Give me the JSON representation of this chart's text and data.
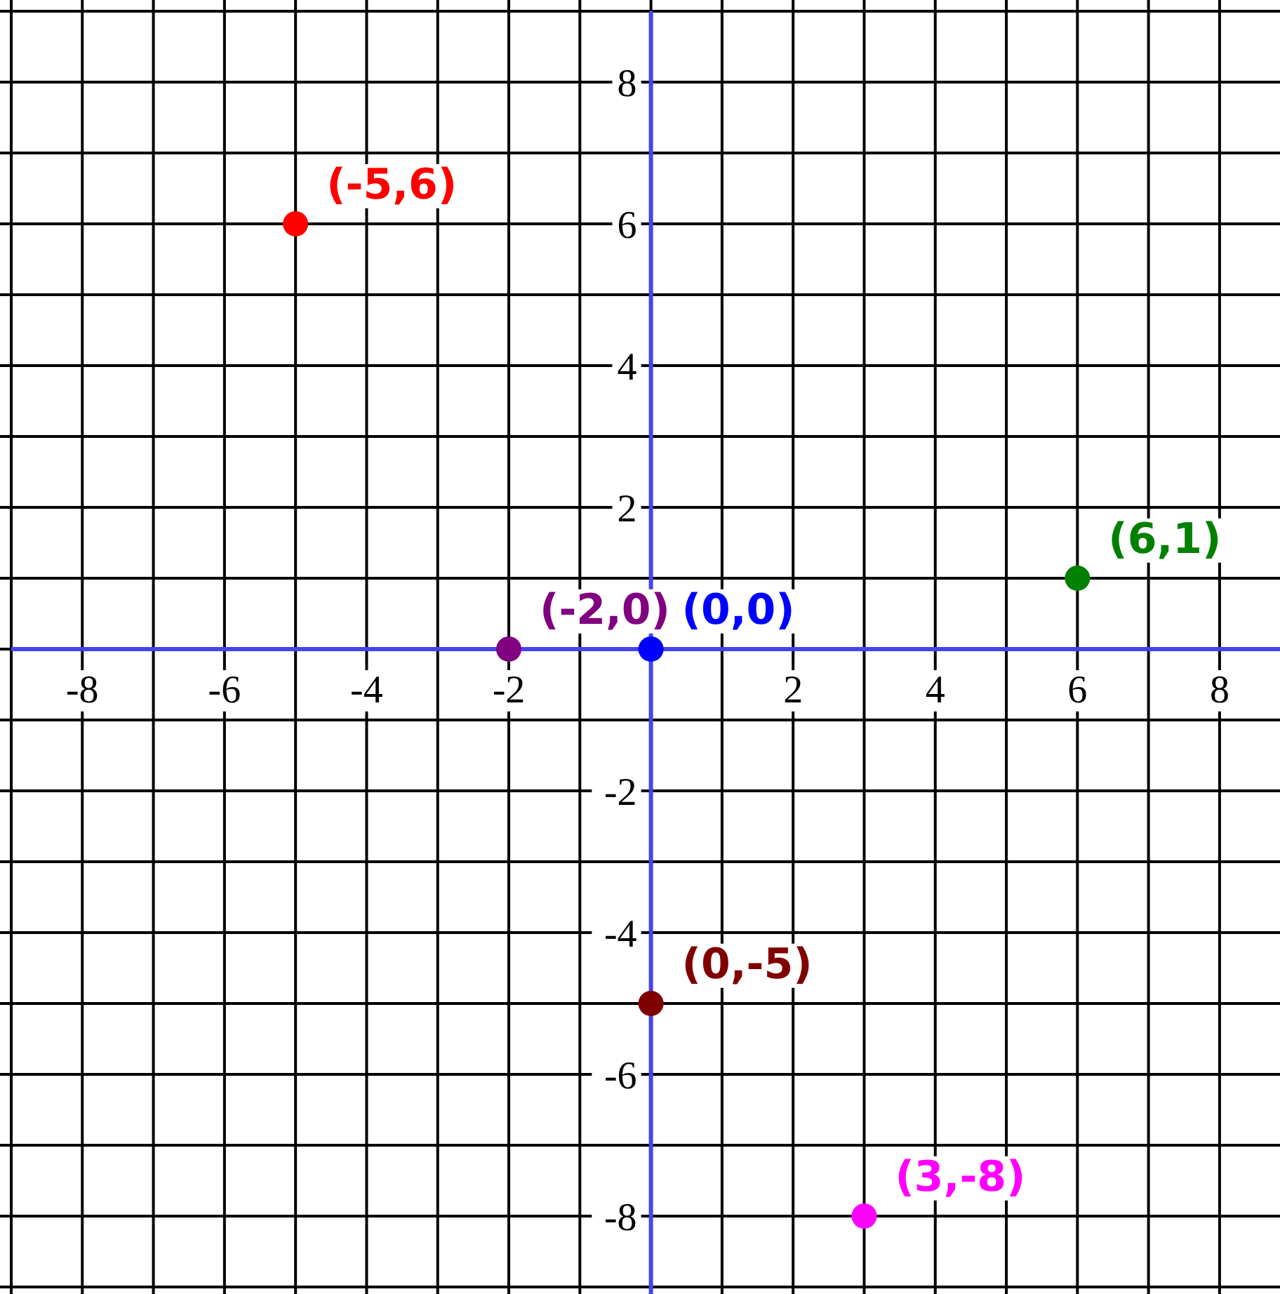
{
  "chart_data": {
    "type": "scatter",
    "xlim": [
      -9,
      8.85
    ],
    "ylim": [
      -9.1,
      9
    ],
    "xticks": [
      {
        "value": -9,
        "label": null
      },
      -8,
      {
        "value": -7,
        "label": null
      },
      -6,
      {
        "value": -5,
        "label": null
      },
      -4,
      {
        "value": -3,
        "label": null
      },
      -2,
      {
        "value": -1,
        "label": null
      },
      {
        "value": 0,
        "label": null
      },
      {
        "value": 1,
        "label": null
      },
      2,
      {
        "value": 3,
        "label": null
      },
      4,
      {
        "value": 5,
        "label": null
      },
      6,
      {
        "value": 7,
        "label": null
      },
      8
    ],
    "yticks": [
      {
        "value": -9,
        "label": null
      },
      -8,
      {
        "value": -7,
        "label": null
      },
      -6,
      {
        "value": -5,
        "label": null
      },
      -4,
      {
        "value": -3,
        "label": null
      },
      -2,
      {
        "value": -1,
        "label": null
      },
      {
        "value": 0,
        "label": null
      },
      {
        "value": 1,
        "label": null
      },
      2,
      {
        "value": 3,
        "label": null
      },
      4,
      {
        "value": 5,
        "label": null
      },
      6,
      {
        "value": 7,
        "label": null
      },
      8,
      {
        "value": 9,
        "label": null
      }
    ],
    "grid": true,
    "marker": "circle",
    "series": [
      {
        "color": "#ff0000",
        "x": [
          -5
        ],
        "values": [
          6
        ]
      },
      {
        "color": "#800080",
        "x": [
          -2
        ],
        "values": [
          0
        ]
      },
      {
        "color": "#0000ff",
        "x": [
          0
        ],
        "values": [
          0
        ]
      },
      {
        "color": "#008000",
        "x": [
          6
        ],
        "values": [
          1
        ]
      },
      {
        "color": "#800000",
        "x": [
          0
        ],
        "values": [
          -5
        ]
      },
      {
        "color": "#ff00ff",
        "x": [
          3
        ],
        "values": [
          -8
        ]
      }
    ],
    "annotations": [
      {
        "text": "(-5,6)",
        "x": -5,
        "y": 6
      },
      {
        "text": "(-2,0)",
        "x": -2,
        "y": 0
      },
      {
        "text": "(0,0)",
        "x": 0,
        "y": 0
      },
      {
        "text": "(6,1)",
        "x": 6,
        "y": 1
      },
      {
        "text": "(0,-5)",
        "x": 0,
        "y": -5
      },
      {
        "text": "(3,-8)",
        "x": 3,
        "y": -8
      }
    ]
  }
}
